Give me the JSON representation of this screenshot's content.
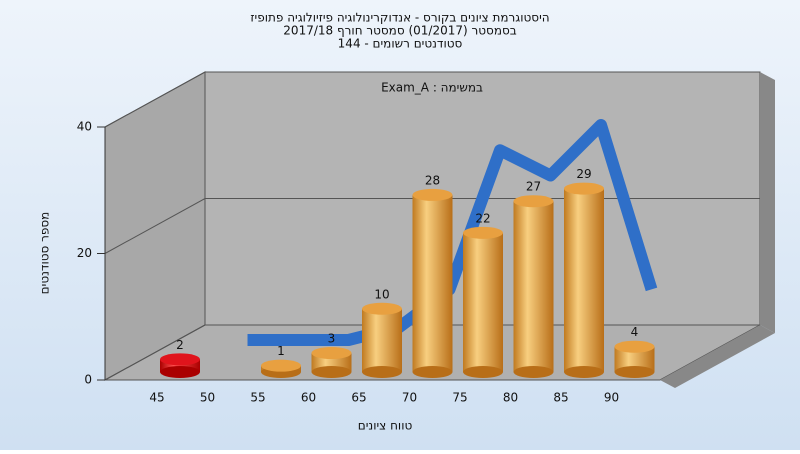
{
  "chart_data": {
    "type": "bar",
    "title_lines": [
      "היסטוגרמת ציונים בקורס - אנדוקרינולוגיה פיזיולוגיה פתופיז",
      "בסמסטר  (01/2017)  סמסטר חורף 2017/18",
      "סטודנטים רשומים - 144"
    ],
    "annotation": "Exam_A : במשימה",
    "x_label": "טווח ציונים",
    "y_label": "מספר סטודנטים",
    "categories": [
      "45",
      "50",
      "55",
      "60",
      "65",
      "70",
      "75",
      "80",
      "85",
      "90"
    ],
    "values": [
      2,
      null,
      1,
      3,
      10,
      28,
      22,
      27,
      29,
      4
    ],
    "colors": [
      "#e0141c",
      null,
      "#e8a040",
      "#e8a040",
      "#e8a040",
      "#e8a040",
      "#e8a040",
      "#e8a040",
      "#e8a040",
      "#e8a040"
    ],
    "line": {
      "color": "#2f6fc8",
      "values": [
        null,
        0,
        0,
        0,
        2,
        8,
        30,
        26,
        34,
        8
      ]
    },
    "ylim": [
      0,
      40
    ],
    "yticks": [
      0,
      20,
      40
    ],
    "grid": true
  }
}
